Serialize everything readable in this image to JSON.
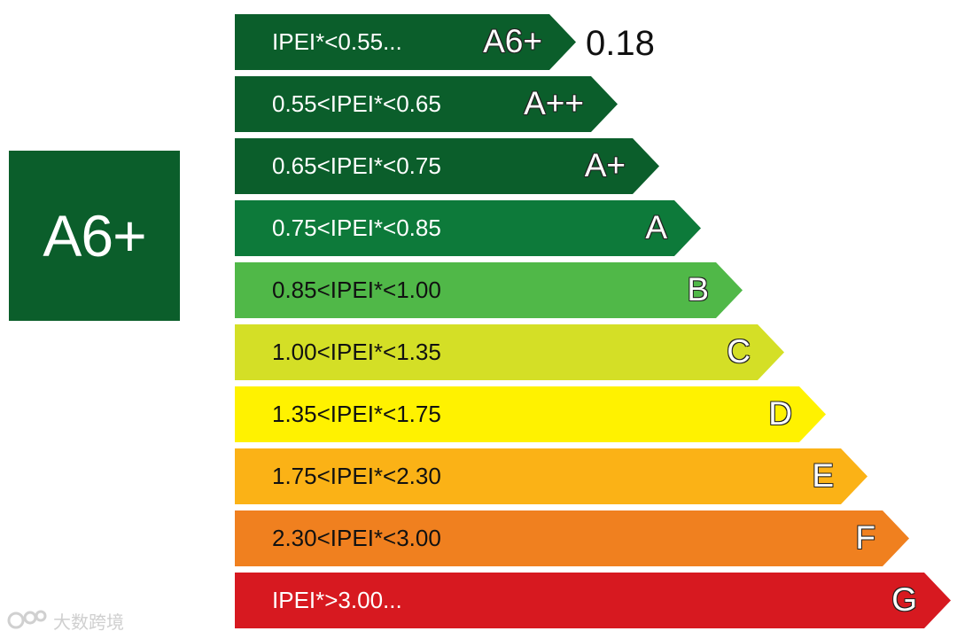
{
  "rating": {
    "label": "A6+",
    "color": "#0b5e2b"
  },
  "current_value": "0.18",
  "bars": [
    {
      "range": "IPEI*<0.55...",
      "grade": "A6+",
      "color": "#0b5e2b",
      "text_color": "#ffffff"
    },
    {
      "range": "0.55<IPEI*<0.65",
      "grade": "A++",
      "color": "#0b5e2b",
      "text_color": "#ffffff"
    },
    {
      "range": "0.65<IPEI*<0.75",
      "grade": "A+",
      "color": "#0b5e2b",
      "text_color": "#ffffff"
    },
    {
      "range": "0.75<IPEI*<0.85",
      "grade": "A",
      "color": "#0d7a3a",
      "text_color": "#ffffff"
    },
    {
      "range": "0.85<IPEI*<1.00",
      "grade": "B",
      "color": "#50b848",
      "text_color": "#111111"
    },
    {
      "range": "1.00<IPEI*<1.35",
      "grade": "C",
      "color": "#d4df26",
      "text_color": "#111111"
    },
    {
      "range": "1.35<IPEI*<1.75",
      "grade": "D",
      "color": "#fff200",
      "text_color": "#111111"
    },
    {
      "range": "1.75<IPEI*<2.30",
      "grade": "E",
      "color": "#fbb216",
      "text_color": "#111111"
    },
    {
      "range": "2.30<IPEI*<3.00",
      "grade": "F",
      "color": "#f0801f",
      "text_color": "#111111"
    },
    {
      "range": "IPEI*>3.00...",
      "grade": "G",
      "color": "#d71920",
      "text_color": "#ffffff"
    }
  ],
  "watermark": {
    "text": "大数跨境",
    "logo_icon": "watermark-logo-icon"
  }
}
